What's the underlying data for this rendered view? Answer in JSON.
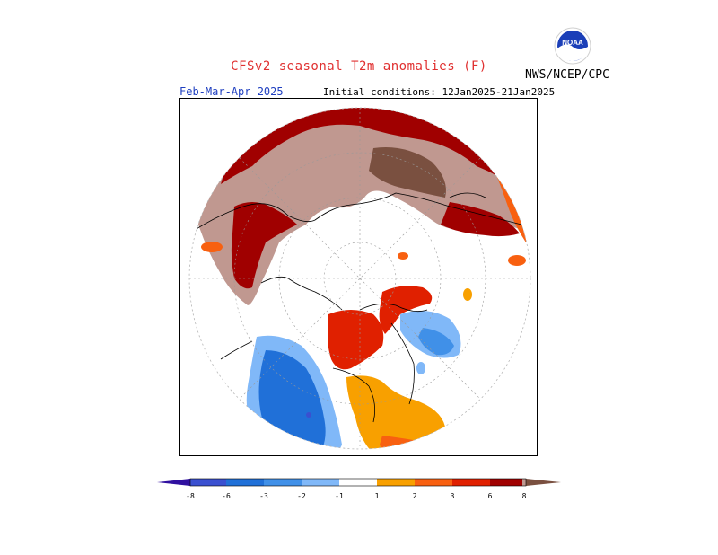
{
  "header": {
    "title": "CFSv2 seasonal T2m anomalies (F)",
    "agency": "NWS/NCEP/CPC",
    "period": "Feb-Mar-Apr 2025",
    "initial_conditions": "Initial conditions: 12Jan2025-21Jan2025",
    "logo_text": "NOAA"
  },
  "colors": {
    "title": "#e03030",
    "period": "#2040c0",
    "c_m8": "#3010a0",
    "c_m6": "#3a50d0",
    "c_m3": "#2070d8",
    "c_m2": "#4090e8",
    "c_m1": "#80b8f8",
    "c_p1": "#f8a000",
    "c_p2": "#f86010",
    "c_p3": "#e02000",
    "c_p6": "#a00000",
    "c_p8": "#c09890",
    "c_p8plus": "#7a5040"
  },
  "colorbar": {
    "labels": [
      "-8",
      "-6",
      "-3",
      "-2",
      "-1",
      "1",
      "2",
      "3",
      "6",
      "8"
    ]
  },
  "map": {
    "projection": "north-polar-stereographic",
    "variable": "T2m anomaly (F)"
  }
}
